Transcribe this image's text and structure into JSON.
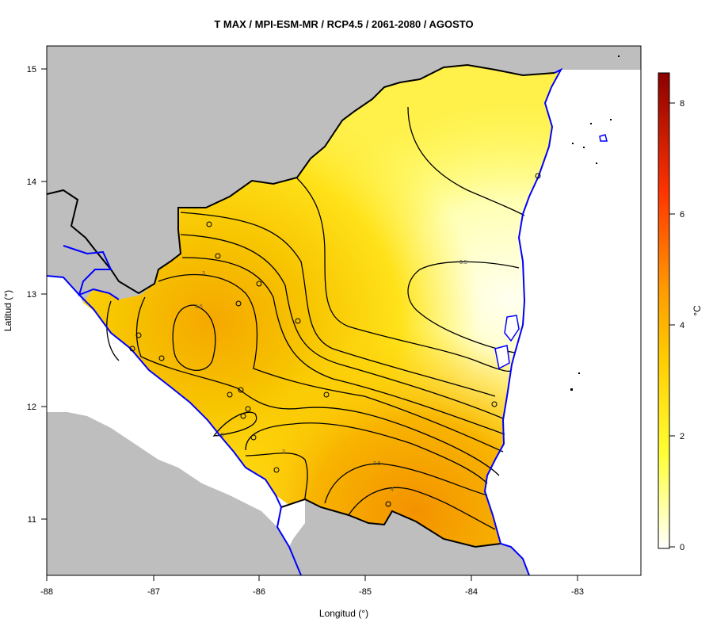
{
  "title": "T MAX / MPI-ESM-MR / RCP4.5 / 2061-2080 / AGOSTO",
  "xlabel": "Longitud (°)",
  "ylabel": "Latitud (°)",
  "x_ticks": [
    "-88",
    "-87",
    "-86",
    "-85",
    "-84",
    "-83"
  ],
  "y_ticks": [
    "15",
    "14",
    "13",
    "12",
    "11"
  ],
  "colorbar": {
    "unit": "°C",
    "ticks": [
      "0",
      "2",
      "4",
      "6",
      "8"
    ],
    "colors": [
      "#ffffff",
      "#ffff33",
      "#ffcc00",
      "#ff9900",
      "#ff3300",
      "#8b0000"
    ]
  },
  "contour_labels": [
    "3",
    "3.5",
    "2.5",
    "3",
    "3.5",
    "4",
    "0.5"
  ],
  "colors": {
    "land_outside": "#bebebe",
    "water": "#ffffff",
    "coast": "#0000ff",
    "border": "#000000"
  }
}
